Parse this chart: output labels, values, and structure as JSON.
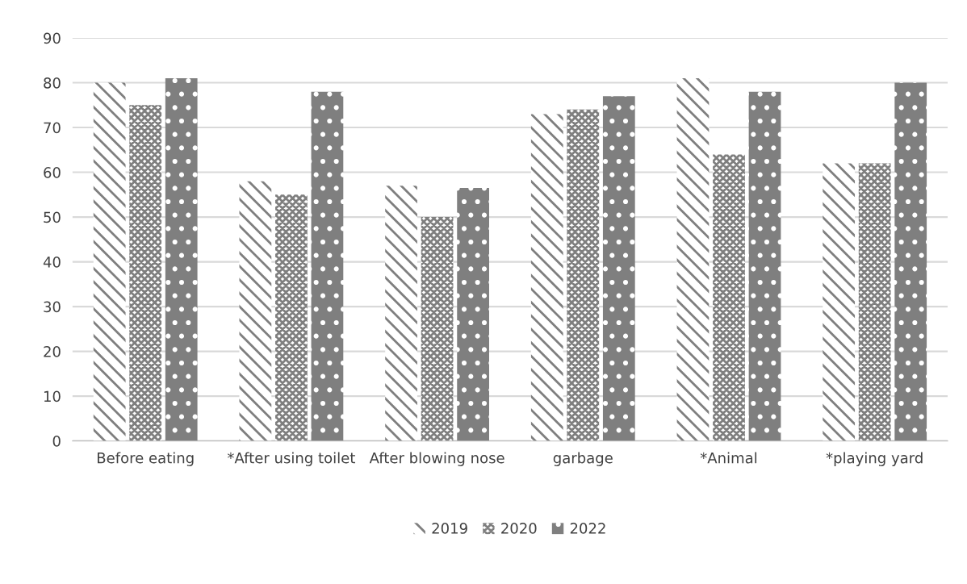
{
  "chart_data": {
    "type": "bar",
    "categories": [
      "Before eating",
      "*After using toilet",
      "After blowing nose",
      "garbage",
      "*Animal",
      "*playing yard"
    ],
    "series": [
      {
        "name": "2019",
        "color": "#7f7f7f",
        "values": [
          80,
          58,
          57,
          73,
          81,
          62
        ]
      },
      {
        "name": "2020",
        "color": "#7f7f7f",
        "values": [
          75,
          55,
          50,
          74,
          64,
          62
        ]
      },
      {
        "name": "2022",
        "color": "#7f7f7f",
        "values": [
          81,
          78,
          56.5,
          77,
          78,
          80
        ]
      }
    ],
    "ylim": [
      0,
      90
    ],
    "yticks": [
      0,
      10,
      20,
      30,
      40,
      50,
      60,
      70,
      80,
      90
    ],
    "grid": "y",
    "legend": "bottom"
  }
}
